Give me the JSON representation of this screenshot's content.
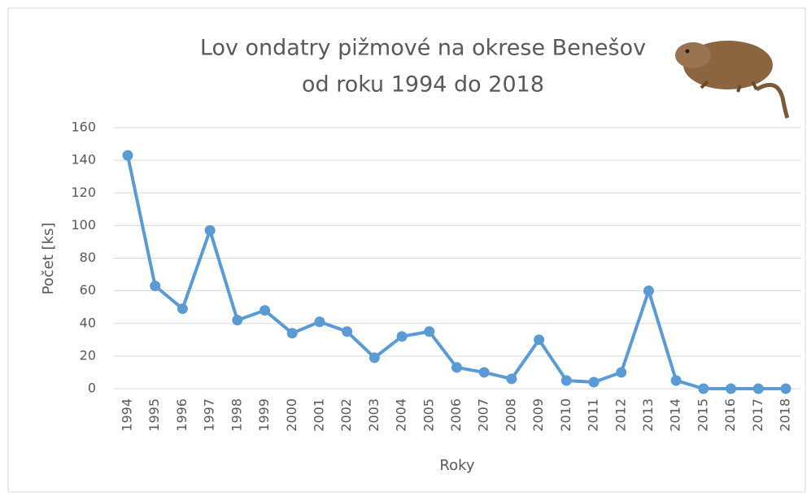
{
  "chart_data": {
    "type": "line",
    "title": [
      "Lov ondatry pižmové na okrese Benešov",
      "od roku 1994 do 2018"
    ],
    "x_label": "Roky",
    "y_label": "Počet [ks]",
    "categories": [
      "1994",
      "1995",
      "1996",
      "1997",
      "1998",
      "1999",
      "2000",
      "2001",
      "2002",
      "2003",
      "2004",
      "2005",
      "2006",
      "2007",
      "2008",
      "2009",
      "2010",
      "2011",
      "2012",
      "2013",
      "2014",
      "2015",
      "2016",
      "2017",
      "2018"
    ],
    "values": [
      143,
      63,
      49,
      97,
      42,
      48,
      34,
      41,
      35,
      19,
      32,
      35,
      13,
      10,
      6,
      30,
      5,
      4,
      10,
      60,
      5,
      0,
      0,
      0,
      0
    ],
    "color": "#5b9bd5",
    "ylim": [
      0,
      160
    ],
    "yticks": [
      0,
      20,
      40,
      60,
      80,
      100,
      120,
      140,
      160
    ],
    "grid": true
  }
}
